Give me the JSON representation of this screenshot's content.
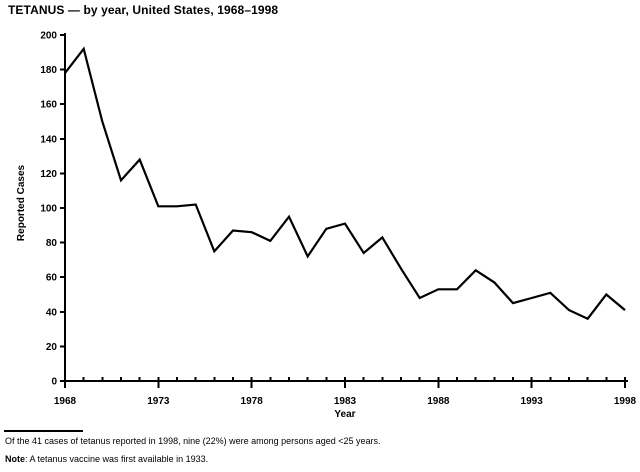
{
  "title": "TETANUS — by year, United States, 1968–1998",
  "chart_data": {
    "type": "line",
    "x": [
      1968,
      1969,
      1970,
      1971,
      1972,
      1973,
      1974,
      1975,
      1976,
      1977,
      1978,
      1979,
      1980,
      1981,
      1982,
      1983,
      1984,
      1985,
      1986,
      1987,
      1988,
      1989,
      1990,
      1991,
      1992,
      1993,
      1994,
      1995,
      1996,
      1997,
      1998
    ],
    "values": [
      178,
      192,
      150,
      116,
      128,
      101,
      101,
      102,
      75,
      87,
      86,
      81,
      95,
      72,
      88,
      91,
      74,
      83,
      65,
      48,
      53,
      53,
      64,
      57,
      45,
      48,
      51,
      41,
      36,
      50,
      41
    ],
    "title": "TETANUS — by year, United States, 1968–1998",
    "xlabel": "Year",
    "ylabel": "Reported Cases",
    "ylim": [
      0,
      200
    ],
    "ytick_step": 20,
    "xticks_labeled": [
      1968,
      1973,
      1978,
      1983,
      1988,
      1993,
      1998
    ],
    "grid": false,
    "legend": "none",
    "line_color": "#000000",
    "background_color": "#ffffff"
  },
  "footnotes": {
    "line1": "Of the 41 cases of tetanus reported in 1998, nine (22%) were among persons aged <25 years.",
    "note_label": "Note",
    "note_text": ": A tetanus vaccine was first available in 1933."
  }
}
